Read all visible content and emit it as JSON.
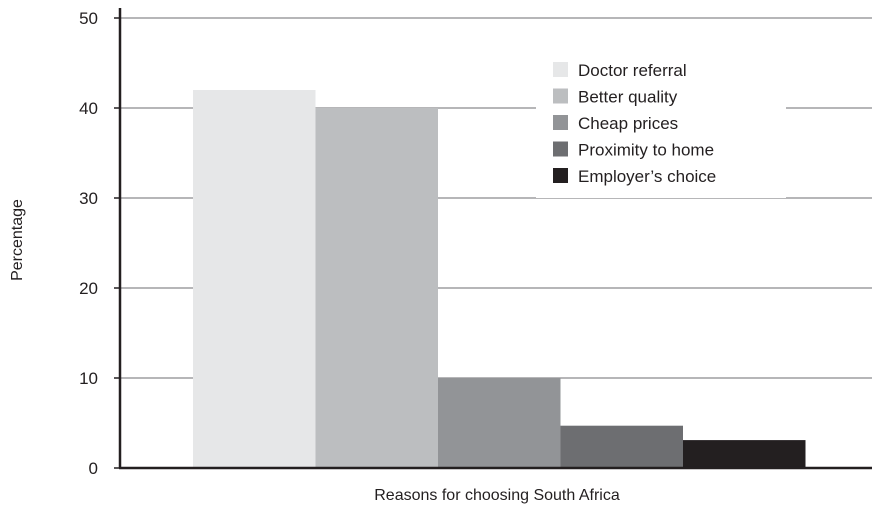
{
  "chart_data": {
    "type": "bar",
    "title": "",
    "xlabel": "Reasons for choosing South Africa",
    "ylabel": "Percentage",
    "ylim": [
      0,
      50
    ],
    "yticks": [
      0,
      10,
      20,
      30,
      40,
      50
    ],
    "grid": true,
    "legend_position": "top-right",
    "series": [
      {
        "name": "Doctor referral",
        "value": 42,
        "color": "#e6e7e8"
      },
      {
        "name": "Better quality",
        "value": 40,
        "color": "#bcbec0"
      },
      {
        "name": "Cheap prices",
        "value": 10,
        "color": "#929497"
      },
      {
        "name": "Proximity to home",
        "value": 4.7,
        "color": "#6d6e71"
      },
      {
        "name": "Employer’s choice",
        "value": 3.1,
        "color": "#231f20"
      }
    ]
  }
}
